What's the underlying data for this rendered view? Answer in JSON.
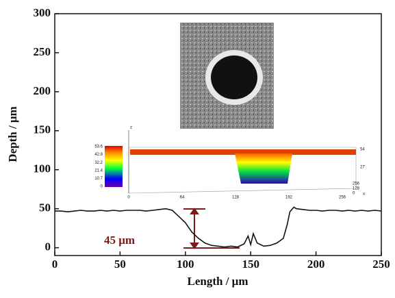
{
  "chart_data": {
    "type": "line",
    "x": [
      0,
      5,
      10,
      15,
      20,
      25,
      30,
      35,
      40,
      45,
      50,
      55,
      60,
      65,
      70,
      75,
      80,
      85,
      90,
      95,
      100,
      105,
      110,
      115,
      120,
      125,
      130,
      135,
      140,
      145,
      148,
      150,
      152,
      155,
      160,
      165,
      170,
      175,
      178,
      180,
      183,
      185,
      190,
      195,
      200,
      205,
      210,
      215,
      220,
      225,
      230,
      235,
      240,
      245,
      250
    ],
    "values": [
      47,
      47,
      46,
      47,
      48,
      47,
      47,
      48,
      47,
      48,
      47,
      48,
      48,
      48,
      47,
      48,
      49,
      50,
      48,
      40,
      32,
      20,
      12,
      6,
      3,
      2,
      1,
      2,
      1,
      5,
      15,
      4,
      18,
      6,
      2,
      3,
      6,
      12,
      30,
      46,
      52,
      50,
      49,
      48,
      48,
      47,
      48,
      48,
      47,
      48,
      47,
      48,
      47,
      48,
      47
    ],
    "color": "#111111",
    "xlabel": "Length / μm",
    "ylabel": "Depth / μm",
    "xlim": [
      0,
      250
    ],
    "xticks": [
      0,
      50,
      100,
      150,
      200,
      250
    ],
    "ylim": [
      -10,
      300
    ],
    "yticks": [
      0,
      50,
      100,
      150,
      200,
      250,
      300
    ],
    "annotation": "45 μm",
    "inset": {
      "z_label": "z",
      "colorbar_ticks": [
        53.6,
        42.9,
        32.2,
        21.4,
        10.7,
        0
      ],
      "x_ticks": [
        0,
        64,
        128,
        192,
        256
      ],
      "z_ticks": [
        54,
        27
      ],
      "y_ticks": [
        256,
        128,
        0
      ],
      "y_label": "x"
    }
  }
}
